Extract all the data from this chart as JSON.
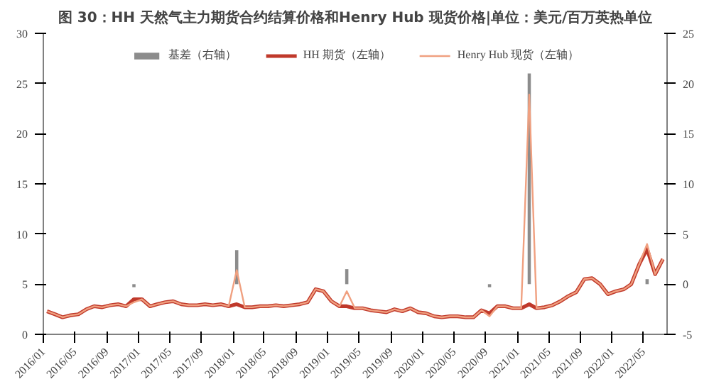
{
  "chart_data": {
    "type": "line",
    "title": "图 30：HH 天然气主力期货合约结算价格和Henry Hub 现货价格|单位：美元/百万英热单位",
    "x": [
      "2016-01-15",
      "2016-02-15",
      "2016-03-15",
      "2016-04-15",
      "2016-05-15",
      "2016-06-15",
      "2016-07-15",
      "2016-08-15",
      "2016-09-15",
      "2016-10-15",
      "2016-11-15",
      "2016-12-15",
      "2017-01-15",
      "2017-02-15",
      "2017-03-15",
      "2017-04-15",
      "2017-05-15",
      "2017-06-15",
      "2017-07-15",
      "2017-08-15",
      "2017-09-15",
      "2017-10-15",
      "2017-11-15",
      "2017-12-15",
      "2018-01-15",
      "2018-02-15",
      "2018-03-15",
      "2018-04-15",
      "2018-05-15",
      "2018-06-15",
      "2018-07-15",
      "2018-08-15",
      "2018-09-15",
      "2018-10-15",
      "2018-11-15",
      "2018-12-15",
      "2019-01-15",
      "2019-02-15",
      "2019-03-15",
      "2019-04-15",
      "2019-05-15",
      "2019-06-15",
      "2019-07-15",
      "2019-08-15",
      "2019-09-15",
      "2019-10-15",
      "2019-11-15",
      "2019-12-15",
      "2020-01-15",
      "2020-02-15",
      "2020-03-15",
      "2020-04-15",
      "2020-05-15",
      "2020-06-15",
      "2020-07-15",
      "2020-08-15",
      "2020-09-15",
      "2020-10-15",
      "2020-11-15",
      "2020-12-15",
      "2021-01-15",
      "2021-02-15",
      "2021-03-15",
      "2021-04-15",
      "2021-05-15",
      "2021-06-15",
      "2021-07-15",
      "2021-08-15",
      "2021-09-15",
      "2021-10-15",
      "2021-11-15",
      "2021-12-15",
      "2022-01-15",
      "2022-02-15",
      "2022-03-15",
      "2022-04-15",
      "2022-05-15",
      "2022-06-15",
      "2022-07-15"
    ],
    "series": [
      {
        "name": "基差（右轴）",
        "type": "bar",
        "axis": "y2",
        "color": "#8c8c8c",
        "values": [
          0,
          0,
          0,
          0,
          0,
          0,
          0,
          0,
          0,
          0,
          0,
          -0.3,
          0,
          0,
          0,
          0,
          0,
          0,
          0,
          0,
          0,
          0,
          0,
          0,
          3.4,
          0,
          0,
          0,
          0,
          0,
          0,
          0,
          0,
          0,
          0,
          0,
          0,
          0,
          1.5,
          0,
          0,
          0,
          0,
          0,
          0,
          0,
          0,
          0,
          0,
          0,
          0,
          0,
          0,
          0,
          0,
          0,
          -0.3,
          0,
          0,
          0,
          0,
          21,
          0,
          0,
          0,
          0,
          0,
          0,
          0,
          0,
          0,
          0,
          0,
          0,
          0,
          0,
          0.5,
          0,
          0
        ]
      },
      {
        "name": "HH 期货（左轴）",
        "color": "#c0392b",
        "values": [
          2.3,
          2.0,
          1.7,
          1.9,
          2.0,
          2.5,
          2.8,
          2.7,
          2.9,
          3.0,
          2.8,
          3.5,
          3.5,
          2.8,
          3.0,
          3.2,
          3.3,
          3.0,
          2.9,
          2.9,
          3.0,
          2.9,
          3.0,
          2.8,
          3.0,
          2.7,
          2.7,
          2.8,
          2.8,
          2.9,
          2.8,
          2.9,
          3.0,
          3.2,
          4.5,
          4.3,
          3.3,
          2.8,
          2.8,
          2.6,
          2.6,
          2.4,
          2.3,
          2.2,
          2.5,
          2.3,
          2.6,
          2.2,
          2.1,
          1.8,
          1.7,
          1.8,
          1.8,
          1.7,
          1.7,
          2.4,
          2.1,
          2.8,
          2.8,
          2.6,
          2.6,
          3.0,
          2.6,
          2.7,
          2.9,
          3.3,
          3.8,
          4.2,
          5.5,
          5.6,
          5.0,
          4.0,
          4.3,
          4.5,
          5.0,
          7.0,
          8.5,
          6.0,
          7.5
        ]
      },
      {
        "name": "Henry Hub 现货（左轴）",
        "color": "#f0a080",
        "values": [
          2.3,
          2.0,
          1.7,
          1.9,
          2.0,
          2.5,
          2.8,
          2.7,
          2.9,
          3.0,
          2.8,
          3.2,
          3.5,
          2.8,
          3.0,
          3.2,
          3.3,
          3.0,
          2.9,
          2.9,
          3.0,
          2.9,
          3.0,
          2.8,
          6.4,
          2.7,
          2.7,
          2.8,
          2.8,
          2.9,
          2.8,
          2.9,
          3.0,
          3.2,
          4.5,
          4.3,
          3.3,
          2.8,
          4.3,
          2.6,
          2.6,
          2.4,
          2.3,
          2.2,
          2.5,
          2.3,
          2.6,
          2.2,
          2.1,
          1.8,
          1.7,
          1.8,
          1.8,
          1.7,
          1.7,
          2.4,
          1.8,
          2.8,
          2.8,
          2.6,
          2.6,
          23.9,
          2.6,
          2.7,
          2.9,
          3.3,
          3.8,
          4.2,
          5.5,
          5.6,
          5.0,
          4.0,
          4.3,
          4.5,
          5.0,
          7.0,
          9.0,
          6.0,
          7.5
        ]
      }
    ],
    "xlim": [
      "2016-01-01",
      "2022-07-31"
    ],
    "xticks": [
      {
        "value": "2016-01-01",
        "label": "2016/01"
      },
      {
        "value": "2016-05-01",
        "label": "2016/05"
      },
      {
        "value": "2016-09-01",
        "label": "2016/09"
      },
      {
        "value": "2017-01-01",
        "label": "2017/01"
      },
      {
        "value": "2017-05-01",
        "label": "2017/05"
      },
      {
        "value": "2017-09-01",
        "label": "2017/09"
      },
      {
        "value": "2018-01-01",
        "label": "2018/01"
      },
      {
        "value": "2018-05-01",
        "label": "2018/05"
      },
      {
        "value": "2018-09-01",
        "label": "2018/09"
      },
      {
        "value": "2019-01-01",
        "label": "2019/01"
      },
      {
        "value": "2019-05-01",
        "label": "2019/05"
      },
      {
        "value": "2019-09-01",
        "label": "2019/09"
      },
      {
        "value": "2020-01-01",
        "label": "2020/01"
      },
      {
        "value": "2020-05-01",
        "label": "2020/05"
      },
      {
        "value": "2020-09-01",
        "label": "2020/09"
      },
      {
        "value": "2021-01-01",
        "label": "2021/01"
      },
      {
        "value": "2021-05-01",
        "label": "2021/05"
      },
      {
        "value": "2021-09-01",
        "label": "2021/09"
      },
      {
        "value": "2022-01-01",
        "label": "2022/01"
      },
      {
        "value": "2022-05-01",
        "label": "2022/05"
      }
    ],
    "ylim": [
      0,
      30
    ],
    "yticks": [
      0,
      5,
      10,
      15,
      20,
      25,
      30
    ],
    "y2lim": [
      -5,
      25
    ],
    "y2ticks": [
      -5,
      0,
      5,
      10,
      15,
      20,
      25
    ],
    "legend": "top",
    "grid": false
  }
}
